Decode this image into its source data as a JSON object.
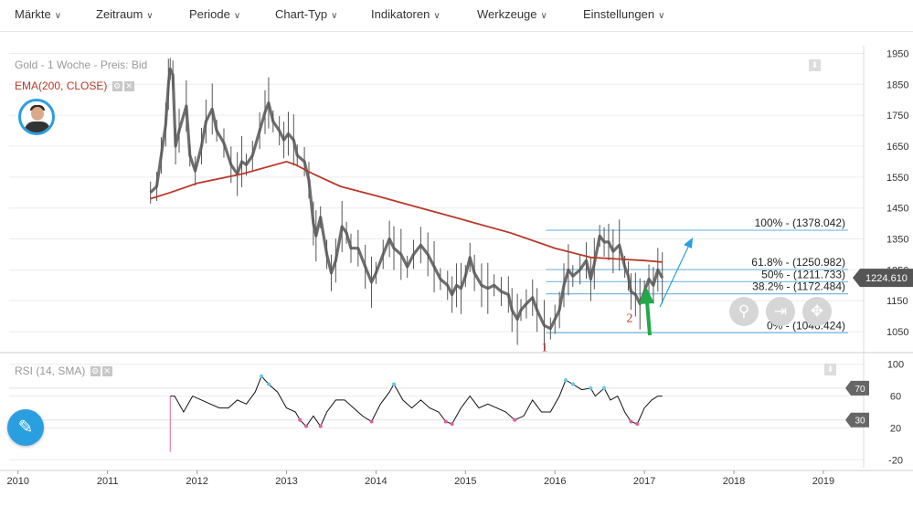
{
  "menu": [
    {
      "label": "Märkte"
    },
    {
      "label": "Zeitraum"
    },
    {
      "label": "Periode"
    },
    {
      "label": "Chart-Typ"
    },
    {
      "label": "Indikatoren"
    },
    {
      "label": "Werkzeuge"
    },
    {
      "label": "Einstellungen"
    }
  ],
  "symbol_label": "Gold - 1 Woche - Preis: Bid",
  "ema_label": "EMA(200, CLOSE)",
  "rsi_label": "RSI (14, SMA)",
  "current_price": "1224.610",
  "icons": {
    "chevron": "chevron-down-icon",
    "edit": "pencil-icon",
    "zoom": "zoom-icon",
    "pan": "pan-icon",
    "move": "move-icon",
    "download": "download-icon"
  },
  "colors": {
    "price": "#555555",
    "ema": "#b83a2a",
    "fib": "#7ab8e0",
    "arrow_green": "#22a84a",
    "rsi": "#111111",
    "rsi_over": "#5ec8e8",
    "rsi_under": "#e0609a",
    "accent": "#2a9fe0"
  },
  "chart_data": [
    {
      "type": "line",
      "title": "Gold - 1 Woche - Preis: Bid",
      "x_tick_labels": [
        "2010",
        "2011",
        "2012",
        "2013",
        "2014",
        "2015",
        "2016",
        "2017",
        "2018",
        "2019"
      ],
      "y_tick_labels": [
        "1950",
        "1850",
        "1750",
        "1650",
        "1550",
        "1450",
        "1350",
        "1250",
        "1150",
        "1050"
      ],
      "ylim": [
        1000,
        1975
      ],
      "xlim": [
        2009.9,
        2019.45
      ],
      "grid": true,
      "series": [
        {
          "name": "Gold",
          "points": [
            [
              2011.48,
              1500
            ],
            [
              2011.55,
              1520
            ],
            [
              2011.6,
              1620
            ],
            [
              2011.65,
              1720
            ],
            [
              2011.68,
              1850
            ],
            [
              2011.7,
              1900
            ],
            [
              2011.73,
              1880
            ],
            [
              2011.76,
              1650
            ],
            [
              2011.8,
              1700
            ],
            [
              2011.88,
              1780
            ],
            [
              2011.92,
              1620
            ],
            [
              2011.98,
              1570
            ],
            [
              2012.05,
              1650
            ],
            [
              2012.1,
              1730
            ],
            [
              2012.17,
              1770
            ],
            [
              2012.22,
              1700
            ],
            [
              2012.3,
              1660
            ],
            [
              2012.38,
              1590
            ],
            [
              2012.45,
              1560
            ],
            [
              2012.5,
              1600
            ],
            [
              2012.55,
              1590
            ],
            [
              2012.62,
              1620
            ],
            [
              2012.7,
              1700
            ],
            [
              2012.76,
              1760
            ],
            [
              2012.8,
              1790
            ],
            [
              2012.85,
              1730
            ],
            [
              2012.92,
              1700
            ],
            [
              2012.97,
              1670
            ],
            [
              2013.02,
              1690
            ],
            [
              2013.08,
              1670
            ],
            [
              2013.12,
              1620
            ],
            [
              2013.2,
              1600
            ],
            [
              2013.25,
              1540
            ],
            [
              2013.3,
              1400
            ],
            [
              2013.33,
              1360
            ],
            [
              2013.38,
              1420
            ],
            [
              2013.45,
              1300
            ],
            [
              2013.5,
              1240
            ],
            [
              2013.55,
              1280
            ],
            [
              2013.62,
              1390
            ],
            [
              2013.67,
              1370
            ],
            [
              2013.72,
              1320
            ],
            [
              2013.8,
              1320
            ],
            [
              2013.88,
              1260
            ],
            [
              2013.95,
              1210
            ],
            [
              2014.0,
              1240
            ],
            [
              2014.08,
              1300
            ],
            [
              2014.15,
              1350
            ],
            [
              2014.2,
              1320
            ],
            [
              2014.28,
              1300
            ],
            [
              2014.35,
              1260
            ],
            [
              2014.42,
              1300
            ],
            [
              2014.5,
              1330
            ],
            [
              2014.58,
              1300
            ],
            [
              2014.65,
              1260
            ],
            [
              2014.72,
              1220
            ],
            [
              2014.8,
              1200
            ],
            [
              2014.85,
              1170
            ],
            [
              2014.9,
              1200
            ],
            [
              2014.95,
              1190
            ],
            [
              2015.0,
              1230
            ],
            [
              2015.05,
              1290
            ],
            [
              2015.1,
              1240
            ],
            [
              2015.18,
              1200
            ],
            [
              2015.25,
              1190
            ],
            [
              2015.32,
              1200
            ],
            [
              2015.4,
              1180
            ],
            [
              2015.48,
              1170
            ],
            [
              2015.52,
              1120
            ],
            [
              2015.58,
              1090
            ],
            [
              2015.62,
              1120
            ],
            [
              2015.68,
              1140
            ],
            [
              2015.75,
              1160
            ],
            [
              2015.8,
              1120
            ],
            [
              2015.88,
              1070
            ],
            [
              2015.95,
              1060
            ],
            [
              2016.0,
              1090
            ],
            [
              2016.05,
              1120
            ],
            [
              2016.1,
              1200
            ],
            [
              2016.15,
              1250
            ],
            [
              2016.2,
              1230
            ],
            [
              2016.28,
              1250
            ],
            [
              2016.35,
              1280
            ],
            [
              2016.4,
              1220
            ],
            [
              2016.44,
              1270
            ],
            [
              2016.5,
              1360
            ],
            [
              2016.55,
              1340
            ],
            [
              2016.6,
              1340
            ],
            [
              2016.65,
              1310
            ],
            [
              2016.72,
              1330
            ],
            [
              2016.78,
              1260
            ],
            [
              2016.82,
              1230
            ],
            [
              2016.85,
              1180
            ],
            [
              2016.9,
              1170
            ],
            [
              2016.95,
              1140
            ],
            [
              2017.0,
              1180
            ],
            [
              2017.05,
              1220
            ],
            [
              2017.1,
              1200
            ],
            [
              2017.15,
              1250
            ],
            [
              2017.2,
              1224
            ]
          ]
        },
        {
          "name": "EMA(200, CLOSE)",
          "points": [
            [
              2011.48,
              1480
            ],
            [
              2011.7,
              1500
            ],
            [
              2012.0,
              1530
            ],
            [
              2012.5,
              1560
            ],
            [
              2013.0,
              1600
            ],
            [
              2013.1,
              1590
            ],
            [
              2013.3,
              1560
            ],
            [
              2013.6,
              1520
            ],
            [
              2014.0,
              1490
            ],
            [
              2014.5,
              1450
            ],
            [
              2015.0,
              1410
            ],
            [
              2015.5,
              1370
            ],
            [
              2016.0,
              1320
            ],
            [
              2016.4,
              1290
            ],
            [
              2016.7,
              1285
            ],
            [
              2017.0,
              1280
            ],
            [
              2017.2,
              1275
            ]
          ]
        }
      ],
      "fibonacci": [
        {
          "label": "100% - (1378.042)",
          "value": 1378.042
        },
        {
          "label": "61.8% - (1250.982)",
          "value": 1250.982
        },
        {
          "label": "50% - (1211.733)",
          "value": 1211.733
        },
        {
          "label": "38.2% - (1172.484)",
          "value": 1172.484
        },
        {
          "label": "0% - (1046.424)",
          "value": 1046.424
        }
      ],
      "annotations": [
        {
          "label": "1",
          "x": 2015.95,
          "y": 1046
        },
        {
          "label": "2",
          "x": 2016.9,
          "y": 1140
        }
      ]
    },
    {
      "type": "line",
      "title": "RSI (14, SMA)",
      "y_tick_labels": [
        "100",
        "60",
        "20",
        "-20"
      ],
      "ylim": [
        -30,
        110
      ],
      "levels": [
        {
          "label": "70",
          "value": 70
        },
        {
          "label": "30",
          "value": 30
        }
      ],
      "series": [
        {
          "name": "RSI (14, SMA)",
          "points": [
            [
              2011.7,
              60
            ],
            [
              2011.75,
              60
            ],
            [
              2011.85,
              40
            ],
            [
              2011.95,
              60
            ],
            [
              2012.05,
              55
            ],
            [
              2012.15,
              50
            ],
            [
              2012.25,
              45
            ],
            [
              2012.35,
              45
            ],
            [
              2012.45,
              55
            ],
            [
              2012.55,
              50
            ],
            [
              2012.65,
              65
            ],
            [
              2012.72,
              85
            ],
            [
              2012.8,
              75
            ],
            [
              2012.9,
              65
            ],
            [
              2013.0,
              45
            ],
            [
              2013.1,
              40
            ],
            [
              2013.15,
              30
            ],
            [
              2013.22,
              22
            ],
            [
              2013.3,
              35
            ],
            [
              2013.38,
              22
            ],
            [
              2013.45,
              40
            ],
            [
              2013.55,
              55
            ],
            [
              2013.65,
              55
            ],
            [
              2013.75,
              45
            ],
            [
              2013.85,
              35
            ],
            [
              2013.95,
              28
            ],
            [
              2014.05,
              50
            ],
            [
              2014.15,
              65
            ],
            [
              2014.2,
              75
            ],
            [
              2014.3,
              55
            ],
            [
              2014.4,
              45
            ],
            [
              2014.5,
              55
            ],
            [
              2014.6,
              45
            ],
            [
              2014.7,
              40
            ],
            [
              2014.78,
              28
            ],
            [
              2014.85,
              25
            ],
            [
              2014.95,
              45
            ],
            [
              2015.05,
              60
            ],
            [
              2015.15,
              45
            ],
            [
              2015.25,
              50
            ],
            [
              2015.35,
              45
            ],
            [
              2015.45,
              40
            ],
            [
              2015.55,
              30
            ],
            [
              2015.65,
              35
            ],
            [
              2015.75,
              55
            ],
            [
              2015.85,
              40
            ],
            [
              2015.95,
              40
            ],
            [
              2016.05,
              60
            ],
            [
              2016.12,
              80
            ],
            [
              2016.2,
              75
            ],
            [
              2016.3,
              68
            ],
            [
              2016.4,
              70
            ],
            [
              2016.45,
              60
            ],
            [
              2016.55,
              70
            ],
            [
              2016.62,
              55
            ],
            [
              2016.7,
              60
            ],
            [
              2016.78,
              40
            ],
            [
              2016.85,
              28
            ],
            [
              2016.92,
              25
            ],
            [
              2017.0,
              45
            ],
            [
              2017.08,
              55
            ],
            [
              2017.15,
              60
            ],
            [
              2017.2,
              60
            ]
          ]
        }
      ]
    }
  ]
}
